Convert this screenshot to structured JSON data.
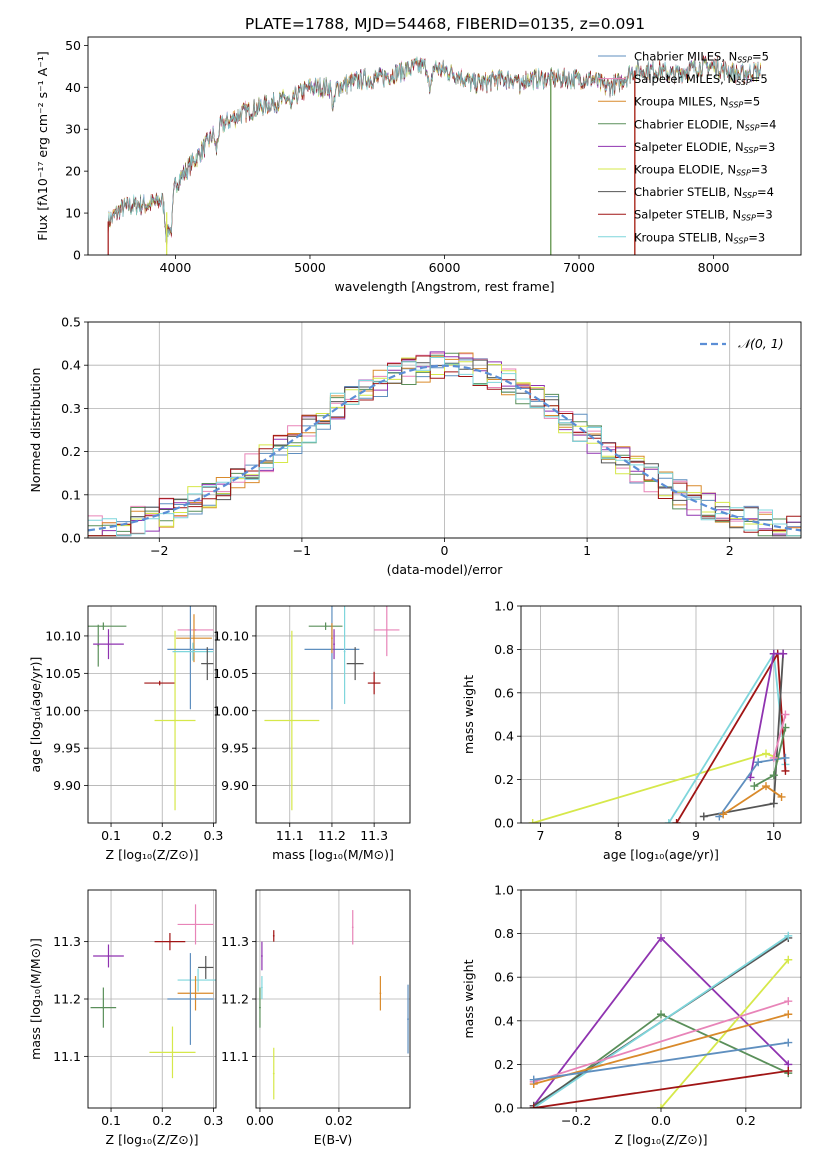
{
  "figure_title": "PLATE=1788, MJD=54468, FIBERID=0135, z=0.091",
  "palette": [
    "#5f8fbf",
    "#e884b8",
    "#d98a2b",
    "#5a8f5a",
    "#8f33b0",
    "#d6e84a",
    "#555555",
    "#a01515",
    "#7fd6dc"
  ],
  "chart_data": [
    {
      "id": "spectrum",
      "type": "line",
      "title": "PLATE=1788, MJD=54468, FIBERID=0135, z=0.091",
      "xlabel": "wavelength [Angstrom, rest frame]",
      "ylabel": "Flux [fλ10⁻¹⁷ erg cm⁻² s⁻¹ A⁻¹]",
      "xlim": [
        3350,
        8650
      ],
      "ylim": [
        0,
        52
      ],
      "xticks": [
        4000,
        5000,
        6000,
        7000,
        8000
      ],
      "yticks": [
        0,
        10,
        20,
        30,
        40,
        50
      ],
      "grid": false,
      "legend_position": "top-right",
      "x_range": [
        3500,
        8350
      ],
      "envelope": {
        "x": [
          3500,
          3600,
          3700,
          3800,
          3900,
          3950,
          4000,
          4100,
          4200,
          4300,
          4400,
          4500,
          4600,
          4700,
          4800,
          4900,
          5000,
          5100,
          5200,
          5300,
          5400,
          5500,
          5600,
          5700,
          5800,
          5900,
          6000,
          6100,
          6200,
          6300,
          6400,
          6500,
          6600,
          6700,
          6800,
          6900,
          7000,
          7100,
          7200,
          7300,
          7400,
          7500,
          7600,
          7700,
          7800,
          7900,
          8000,
          8100,
          8200,
          8350
        ],
        "y": [
          8,
          11,
          12,
          12,
          13,
          9,
          17,
          21,
          25,
          30,
          32,
          34,
          35,
          36,
          37,
          38,
          40,
          40,
          40,
          41,
          42,
          42,
          43,
          44,
          45,
          45,
          44,
          43,
          41,
          41,
          42,
          42,
          42,
          42,
          42,
          42,
          42,
          42,
          40,
          41,
          44,
          44,
          44,
          43,
          44,
          45,
          45,
          44,
          43,
          44
        ]
      },
      "absorption_lines": [
        {
          "x": 3934,
          "depth": 6
        },
        {
          "x": 3968,
          "depth": 6
        },
        {
          "x": 4304,
          "depth": 5
        },
        {
          "x": 4861,
          "depth": 3
        },
        {
          "x": 5175,
          "depth": 5
        },
        {
          "x": 5893,
          "depth": 7
        },
        {
          "x": 6563,
          "depth": 3
        }
      ],
      "series": [
        {
          "name": "Chabrier MILES, N_SSP=5",
          "label_main": "Chabrier MILES, N",
          "label_sub": "SSP",
          "label_tail": "=5",
          "color_index": 0
        },
        {
          "name": "Salpeter MILES, N_SSP=5",
          "label_main": "Salpeter MILES, N",
          "label_sub": "SSP",
          "label_tail": "=5",
          "color_index": 1
        },
        {
          "name": "Kroupa MILES, N_SSP=5",
          "label_main": "Kroupa MILES, N",
          "label_sub": "SSP",
          "label_tail": "=5",
          "color_index": 2
        },
        {
          "name": "Chabrier ELODIE, N_SSP=4",
          "label_main": "Chabrier ELODIE, N",
          "label_sub": "SSP",
          "label_tail": "=4",
          "color_index": 3
        },
        {
          "name": "Salpeter ELODIE, N_SSP=3",
          "label_main": "Salpeter ELODIE, N",
          "label_sub": "SSP",
          "label_tail": "=3",
          "color_index": 4
        },
        {
          "name": "Kroupa ELODIE, N_SSP=3",
          "label_main": "Kroupa ELODIE, N",
          "label_sub": "SSP",
          "label_tail": "=3",
          "color_index": 5
        },
        {
          "name": "Chabrier STELIB, N_SSP=4",
          "label_main": "Chabrier STELIB, N",
          "label_sub": "SSP",
          "label_tail": "=4",
          "color_index": 6
        },
        {
          "name": "Salpeter STELIB, N_SSP=3",
          "label_main": "Salpeter STELIB, N",
          "label_sub": "SSP",
          "label_tail": "=3",
          "color_index": 7
        },
        {
          "name": "Kroupa STELIB, N_SSP=3",
          "label_main": "Kroupa STELIB, N",
          "label_sub": "SSP",
          "label_tail": "=3",
          "color_index": 8
        }
      ],
      "edge_drops": [
        {
          "color_index": 7,
          "x": 3500
        },
        {
          "color_index": 5,
          "x": 3935
        },
        {
          "color_index": 5,
          "x": 6790
        },
        {
          "color_index": 3,
          "x": 6790
        },
        {
          "color_index": 2,
          "x": 7415
        },
        {
          "color_index": 7,
          "x": 7415
        }
      ]
    },
    {
      "id": "residuals",
      "type": "line",
      "xlabel": "(data-model)/error",
      "ylabel": "Normed distribution",
      "xlim": [
        -2.5,
        2.5
      ],
      "ylim": [
        0,
        0.5
      ],
      "xticks": [
        -2,
        -1,
        0,
        1,
        2
      ],
      "yticks": [
        0.0,
        0.1,
        0.2,
        0.3,
        0.4,
        0.5
      ],
      "grid": true,
      "legend_position": "top-right",
      "legend_label": "𝒩(0, 1)",
      "gaussian": {
        "mean": 0,
        "sigma": 1,
        "color": "#5b8ed6"
      },
      "bin_edges_range": [
        -2.5,
        2.5
      ],
      "bin_width": 0.1
    },
    {
      "id": "age_vs_Z",
      "type": "scatter",
      "xlabel": "Z [log₁₀(Z/Z⊙)]",
      "ylabel": "age  [log₁₀(age/yr)]",
      "xlim": [
        0.055,
        0.305
      ],
      "ylim": [
        9.85,
        10.14
      ],
      "xticks": [
        0.1,
        0.2,
        0.3
      ],
      "yticks": [
        9.9,
        9.95,
        10.0,
        10.05,
        10.1
      ],
      "grid": true,
      "points": [
        {
          "color_index": 3,
          "x": 0.085,
          "y": 10.113,
          "xerr": 0.045,
          "yerr": 0.005
        },
        {
          "color_index": 3,
          "x": 0.075,
          "y": 10.087,
          "xerr": 0.0,
          "yerr": 0.028
        },
        {
          "color_index": 4,
          "x": 0.095,
          "y": 10.089,
          "xerr": 0.03,
          "yerr": 0.02
        },
        {
          "color_index": 7,
          "x": 0.195,
          "y": 10.037,
          "xerr": 0.03,
          "yerr": 0.003
        },
        {
          "color_index": 5,
          "x": 0.225,
          "y": 9.987,
          "xerr": 0.04,
          "yerr": 0.12
        },
        {
          "color_index": 1,
          "x": 0.265,
          "y": 10.108,
          "xerr": 0.035,
          "yerr": 0.0
        },
        {
          "color_index": 2,
          "x": 0.262,
          "y": 10.097,
          "xerr": 0.035,
          "yerr": 0.032
        },
        {
          "color_index": 0,
          "x": 0.255,
          "y": 10.082,
          "xerr": 0.045,
          "yerr": 0.08
        },
        {
          "color_index": 8,
          "x": 0.26,
          "y": 10.079,
          "xerr": 0.04,
          "yerr": 0.012
        },
        {
          "color_index": 6,
          "x": 0.288,
          "y": 10.063,
          "xerr": 0.012,
          "yerr": 0.022
        }
      ]
    },
    {
      "id": "age_vs_mass",
      "type": "scatter",
      "xlabel": "mass [log₁₀(M/M⊙)]",
      "ylabel": "",
      "xlim": [
        11.02,
        11.385
      ],
      "ylim": [
        9.85,
        10.14
      ],
      "xticks": [
        11.1,
        11.2,
        11.3
      ],
      "yticks": [
        9.9,
        9.95,
        10.0,
        10.05,
        10.1
      ],
      "grid": true,
      "points": [
        {
          "color_index": 5,
          "x": 11.105,
          "y": 9.987,
          "xerr": 0.065,
          "yerr": 0.12
        },
        {
          "color_index": 0,
          "x": 11.2,
          "y": 10.082,
          "xerr": 0.065,
          "yerr": 0.08
        },
        {
          "color_index": 3,
          "x": 11.185,
          "y": 10.113,
          "xerr": 0.04,
          "yerr": 0.005
        },
        {
          "color_index": 8,
          "x": 11.23,
          "y": 10.079,
          "xerr": 0.0,
          "yerr": 0.07
        },
        {
          "color_index": 4,
          "x": 11.205,
          "y": 10.089,
          "xerr": 0.0,
          "yerr": 0.02
        },
        {
          "color_index": 2,
          "x": 11.2,
          "y": 10.097,
          "xerr": 0.0,
          "yerr": 0.02
        },
        {
          "color_index": 6,
          "x": 11.255,
          "y": 10.063,
          "xerr": 0.02,
          "yerr": 0.022
        },
        {
          "color_index": 1,
          "x": 11.33,
          "y": 10.108,
          "xerr": 0.03,
          "yerr": 0.035
        },
        {
          "color_index": 7,
          "x": 11.3,
          "y": 10.037,
          "xerr": 0.015,
          "yerr": 0.015
        }
      ]
    },
    {
      "id": "weight_vs_age",
      "type": "line",
      "xlabel": "age  [log₁₀(age/yr)]",
      "ylabel": "mass weight",
      "xlim": [
        6.75,
        10.35
      ],
      "ylim": [
        0,
        1.0
      ],
      "xticks": [
        7,
        8,
        9,
        10
      ],
      "yticks": [
        0.0,
        0.2,
        0.4,
        0.6,
        0.8,
        1.0
      ],
      "grid": true,
      "series": [
        {
          "color_index": 5,
          "x": [
            6.9,
            9.9,
            10.05
          ],
          "y": [
            0.0,
            0.32,
            0.3
          ]
        },
        {
          "color_index": 8,
          "x": [
            8.65,
            10.0,
            10.15
          ],
          "y": [
            0.0,
            0.78,
            0.27
          ]
        },
        {
          "color_index": 7,
          "x": [
            8.75,
            10.05,
            10.15
          ],
          "y": [
            0.0,
            0.78,
            0.24
          ]
        },
        {
          "color_index": 6,
          "x": [
            9.1,
            10.0,
            10.12
          ],
          "y": [
            0.03,
            0.09,
            0.78
          ]
        },
        {
          "color_index": 4,
          "x": [
            9.7,
            10.0,
            10.12
          ],
          "y": [
            0.21,
            0.78,
            0.78
          ]
        },
        {
          "color_index": 0,
          "x": [
            9.3,
            9.8,
            10.15
          ],
          "y": [
            0.03,
            0.28,
            0.3
          ]
        },
        {
          "color_index": 3,
          "x": [
            9.75,
            10.0,
            10.15
          ],
          "y": [
            0.17,
            0.22,
            0.44
          ]
        },
        {
          "color_index": 2,
          "x": [
            9.35,
            9.9,
            10.1
          ],
          "y": [
            0.04,
            0.17,
            0.12
          ]
        },
        {
          "color_index": 1,
          "x": [
            10.0,
            10.15
          ],
          "y": [
            0.3,
            0.5
          ]
        }
      ]
    },
    {
      "id": "mass_vs_Z",
      "type": "scatter",
      "xlabel": "Z [log₁₀(Z/Z⊙)]",
      "ylabel": "mass [log₁₀(M/M⊙)]",
      "xlim": [
        0.055,
        0.305
      ],
      "ylim": [
        11.01,
        11.39
      ],
      "xticks": [
        0.1,
        0.2,
        0.3
      ],
      "yticks": [
        11.1,
        11.2,
        11.3
      ],
      "grid": true,
      "points": [
        {
          "color_index": 4,
          "x": 0.095,
          "y": 11.275,
          "xerr": 0.03,
          "yerr": 0.02
        },
        {
          "color_index": 3,
          "x": 0.085,
          "y": 11.185,
          "xerr": 0.025,
          "yerr": 0.035
        },
        {
          "color_index": 7,
          "x": 0.215,
          "y": 11.3,
          "xerr": 0.03,
          "yerr": 0.015
        },
        {
          "color_index": 1,
          "x": 0.265,
          "y": 11.33,
          "xerr": 0.035,
          "yerr": 0.035
        },
        {
          "color_index": 8,
          "x": 0.27,
          "y": 11.233,
          "xerr": 0.04,
          "yerr": 0.02
        },
        {
          "color_index": 6,
          "x": 0.285,
          "y": 11.255,
          "xerr": 0.015,
          "yerr": 0.02
        },
        {
          "color_index": 2,
          "x": 0.265,
          "y": 11.21,
          "xerr": 0.035,
          "yerr": 0.03
        },
        {
          "color_index": 0,
          "x": 0.255,
          "y": 11.2,
          "xerr": 0.045,
          "yerr": 0.08
        },
        {
          "color_index": 5,
          "x": 0.22,
          "y": 11.107,
          "xerr": 0.045,
          "yerr": 0.045
        }
      ]
    },
    {
      "id": "mass_vs_EBV",
      "type": "scatter",
      "xlabel": "E(B-V)",
      "ylabel": "",
      "xlim": [
        -0.001,
        0.038
      ],
      "ylim": [
        11.01,
        11.39
      ],
      "xticks": [
        0.0,
        0.02
      ],
      "yticks": [
        11.1,
        11.2,
        11.3
      ],
      "grid": true,
      "points": [
        {
          "color_index": 4,
          "x": 0.0005,
          "y": 11.275,
          "xerr": 0,
          "yerr": 0.025
        },
        {
          "color_index": 3,
          "x": 0.0,
          "y": 11.185,
          "xerr": 0,
          "yerr": 0.035
        },
        {
          "color_index": 8,
          "x": 0.0005,
          "y": 11.22,
          "xerr": 0,
          "yerr": 0.02
        },
        {
          "color_index": 5,
          "x": 0.0035,
          "y": 11.07,
          "xerr": 0,
          "yerr": 0.045
        },
        {
          "color_index": 7,
          "x": 0.0035,
          "y": 11.31,
          "xerr": 0,
          "yerr": 0.01
        },
        {
          "color_index": 1,
          "x": 0.0235,
          "y": 11.325,
          "xerr": 0,
          "yerr": 0.03
        },
        {
          "color_index": 2,
          "x": 0.0305,
          "y": 11.21,
          "xerr": 0,
          "yerr": 0.03
        },
        {
          "color_index": 0,
          "x": 0.0375,
          "y": 11.165,
          "xerr": 0,
          "yerr": 0.06
        }
      ]
    },
    {
      "id": "weight_vs_Z",
      "type": "line",
      "xlabel": "Z [log₁₀(Z/Z⊙)]",
      "ylabel": "mass weight",
      "xlim": [
        -0.33,
        0.33
      ],
      "ylim": [
        0,
        1.0
      ],
      "xticks": [
        -0.2,
        0.0,
        0.2
      ],
      "yticks": [
        0.0,
        0.2,
        0.4,
        0.6,
        0.8,
        1.0
      ],
      "grid": true,
      "series": [
        {
          "color_index": 4,
          "x": [
            -0.3,
            0.0,
            0.3
          ],
          "y": [
            0.01,
            0.78,
            0.2
          ]
        },
        {
          "color_index": 3,
          "x": [
            -0.3,
            0.0,
            0.3
          ],
          "y": [
            0.0,
            0.43,
            0.16
          ]
        },
        {
          "color_index": 6,
          "x": [
            -0.3,
            0.3
          ],
          "y": [
            0.01,
            0.78
          ]
        },
        {
          "color_index": 8,
          "x": [
            -0.3,
            0.3
          ],
          "y": [
            0.0,
            0.79
          ]
        },
        {
          "color_index": 5,
          "x": [
            0.0,
            0.3
          ],
          "y": [
            0.0,
            0.68
          ]
        },
        {
          "color_index": 1,
          "x": [
            -0.3,
            0.3
          ],
          "y": [
            0.12,
            0.49
          ]
        },
        {
          "color_index": 2,
          "x": [
            -0.3,
            0.3
          ],
          "y": [
            0.11,
            0.43
          ]
        },
        {
          "color_index": 0,
          "x": [
            -0.3,
            0.3
          ],
          "y": [
            0.13,
            0.3
          ]
        },
        {
          "color_index": 7,
          "x": [
            -0.3,
            0.3
          ],
          "y": [
            0.0,
            0.17
          ]
        }
      ]
    }
  ]
}
